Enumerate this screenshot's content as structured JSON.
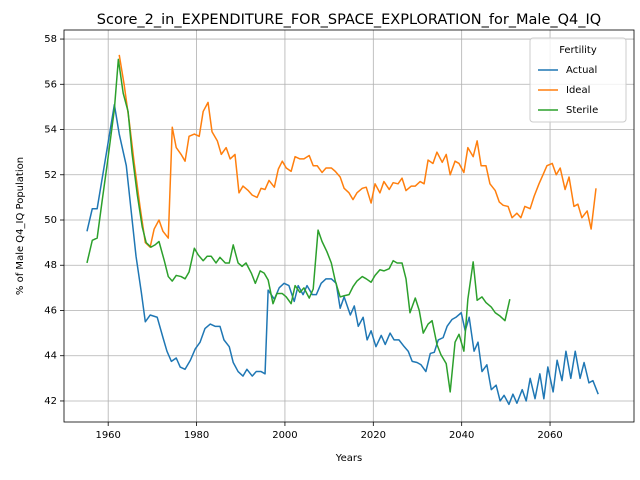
{
  "chart_data": {
    "type": "line",
    "title": "Score_2_in_EXPENDITURE_FOR_SPACE_EXPLORATION_for_Male_Q4_IQ",
    "xlabel": "Years",
    "ylabel": "% of Male Q4_IQ Population",
    "legend_title": "Fertility",
    "legend": "upper right",
    "grid": true,
    "xlim": [
      1950,
      2079
    ],
    "ylim": [
      41.07,
      58.4
    ],
    "xticks": [
      1960,
      1980,
      2000,
      2020,
      2040,
      2060
    ],
    "yticks": [
      42,
      44,
      46,
      48,
      50,
      52,
      54,
      56,
      58
    ],
    "series": [
      {
        "name": "Actual",
        "color": "#1f77b4",
        "x": [
          1955.2,
          1956.4,
          1957.5,
          1959.8,
          1961.4,
          1962.5,
          1964.1,
          1965.2,
          1966.3,
          1967.5,
          1968.4,
          1969.5,
          1971.1,
          1972.4,
          1973.3,
          1974.3,
          1975.4,
          1976.3,
          1977.4,
          1978.6,
          1979.7,
          1980.8,
          1981.9,
          1983.1,
          1984.2,
          1985.3,
          1986.2,
          1987.4,
          1988.3,
          1989.4,
          1990.5,
          1991.4,
          1992.6,
          1993.5,
          1994.6,
          1995.5,
          1996.2,
          1997.6,
          1998.7,
          1999.8,
          2000.9,
          2002.1,
          2003.0,
          2004.1,
          2005.0,
          2006.2,
          2007.1,
          2008.2,
          2009.3,
          2010.5,
          2011.6,
          2012.5,
          2013.4,
          2014.8,
          2015.7,
          2016.6,
          2017.7,
          2018.6,
          2019.5,
          2020.6,
          2021.8,
          2022.7,
          2023.8,
          2024.7,
          2025.8,
          2027.0,
          2027.9,
          2028.8,
          2029.9,
          2030.8,
          2031.9,
          2032.9,
          2033.8,
          2034.7,
          2035.8,
          2036.7,
          2037.8,
          2038.7,
          2039.9,
          2040.8,
          2041.7,
          2042.8,
          2043.7,
          2044.6,
          2045.7,
          2046.7,
          2047.8,
          2048.7,
          2049.6,
          2050.7,
          2051.6,
          2052.5,
          2053.7,
          2054.6,
          2055.5,
          2056.6,
          2057.7,
          2058.6,
          2059.5,
          2060.7,
          2061.6,
          2062.7,
          2063.6,
          2064.7,
          2065.7,
          2066.8,
          2067.7,
          2068.8,
          2069.7,
          2070.9
        ],
        "values": [
          49.5,
          50.5,
          50.5,
          53.2,
          55.1,
          53.8,
          52.4,
          50.4,
          48.4,
          46.8,
          45.5,
          45.8,
          45.7,
          44.8,
          44.2,
          43.75,
          43.9,
          43.5,
          43.4,
          43.8,
          44.3,
          44.6,
          45.2,
          45.4,
          45.3,
          45.3,
          44.7,
          44.4,
          43.7,
          43.3,
          43.1,
          43.4,
          43.1,
          43.3,
          43.3,
          43.2,
          46.9,
          46.5,
          47.0,
          47.2,
          47.1,
          46.4,
          47.1,
          46.7,
          47.1,
          46.7,
          46.7,
          47.2,
          47.4,
          47.4,
          47.2,
          46.1,
          46.6,
          45.8,
          46.2,
          45.3,
          45.7,
          44.7,
          45.1,
          44.4,
          44.9,
          44.5,
          45.0,
          44.7,
          44.7,
          44.4,
          44.2,
          43.75,
          43.7,
          43.6,
          43.3,
          44.1,
          44.15,
          44.7,
          44.8,
          45.3,
          45.6,
          45.7,
          45.9,
          45.1,
          45.7,
          44.2,
          44.6,
          43.3,
          43.6,
          42.5,
          42.7,
          42.0,
          42.25,
          41.85,
          42.3,
          41.9,
          42.5,
          42.0,
          43.0,
          42.1,
          43.2,
          42.1,
          43.5,
          42.4,
          43.8,
          42.9,
          44.2,
          43.0,
          44.2,
          43.0,
          43.7,
          42.8,
          42.9,
          42.3
        ]
      },
      {
        "name": "Ideal",
        "color": "#ff7f0e",
        "x": [
          1962.5,
          1963.6,
          1964.8,
          1965.9,
          1967.2,
          1968.4,
          1969.5,
          1970.4,
          1971.5,
          1972.4,
          1973.6,
          1974.5,
          1975.4,
          1976.5,
          1977.4,
          1978.3,
          1979.5,
          1980.6,
          1981.5,
          1982.6,
          1983.5,
          1984.7,
          1985.6,
          1986.7,
          1987.6,
          1988.7,
          1989.6,
          1990.5,
          1991.7,
          1992.6,
          1993.7,
          1994.6,
          1995.5,
          1996.4,
          1997.6,
          1998.5,
          1999.4,
          2000.3,
          2001.4,
          2002.3,
          2003.4,
          2004.3,
          2005.5,
          2006.4,
          2007.3,
          2008.4,
          2009.3,
          2010.5,
          2011.4,
          2012.5,
          2013.4,
          2014.5,
          2015.4,
          2016.3,
          2017.5,
          2018.4,
          2019.5,
          2020.4,
          2021.5,
          2022.4,
          2023.6,
          2024.5,
          2025.6,
          2026.5,
          2027.4,
          2028.6,
          2029.5,
          2030.6,
          2031.5,
          2032.4,
          2033.5,
          2034.4,
          2035.6,
          2036.5,
          2037.4,
          2038.5,
          2039.4,
          2040.5,
          2041.4,
          2042.6,
          2043.5,
          2044.4,
          2045.5,
          2046.4,
          2047.6,
          2048.5,
          2049.4,
          2050.5,
          2051.4,
          2052.5,
          2053.4,
          2054.3,
          2055.5,
          2056.4,
          2057.5,
          2058.4,
          2059.3,
          2060.5,
          2061.4,
          2062.3,
          2063.4,
          2064.3,
          2065.4,
          2066.3,
          2067.2,
          2068.4,
          2069.3,
          2070.4
        ],
        "values": [
          57.3,
          56.0,
          54.3,
          52.5,
          50.6,
          49.0,
          48.8,
          49.6,
          50.0,
          49.5,
          49.2,
          54.1,
          53.2,
          52.9,
          52.6,
          53.7,
          53.8,
          53.7,
          54.8,
          55.2,
          53.9,
          53.5,
          52.9,
          53.2,
          52.7,
          52.9,
          51.2,
          51.5,
          51.3,
          51.1,
          51.0,
          51.4,
          51.35,
          51.75,
          51.45,
          52.25,
          52.6,
          52.3,
          52.15,
          52.8,
          52.7,
          52.7,
          52.85,
          52.4,
          52.4,
          52.1,
          52.3,
          52.3,
          52.15,
          51.9,
          51.4,
          51.2,
          50.9,
          51.2,
          51.4,
          51.45,
          50.75,
          51.6,
          51.2,
          51.7,
          51.35,
          51.65,
          51.6,
          51.85,
          51.3,
          51.5,
          51.5,
          51.7,
          51.6,
          52.65,
          52.5,
          53.0,
          52.55,
          52.9,
          52.0,
          52.6,
          52.5,
          52.1,
          53.2,
          52.8,
          53.5,
          52.4,
          52.4,
          51.6,
          51.3,
          50.8,
          50.65,
          50.6,
          50.1,
          50.3,
          50.1,
          50.6,
          50.5,
          51.05,
          51.6,
          52.0,
          52.4,
          52.5,
          52.0,
          52.3,
          51.35,
          51.9,
          50.6,
          50.7,
          50.1,
          50.4,
          49.6,
          51.4
        ]
      },
      {
        "name": "Sterile",
        "color": "#2ca02c",
        "x": [
          1955.2,
          1956.4,
          1957.5,
          1958.6,
          1959.8,
          1961.4,
          1962.3,
          1963.4,
          1964.5,
          1965.4,
          1966.6,
          1967.7,
          1968.6,
          1969.7,
          1970.6,
          1971.5,
          1972.7,
          1973.6,
          1974.5,
          1975.4,
          1976.5,
          1977.4,
          1978.3,
          1979.5,
          1980.4,
          1981.5,
          1982.4,
          1983.3,
          1984.4,
          1985.3,
          1986.5,
          1987.4,
          1988.3,
          1989.4,
          1990.3,
          1991.2,
          1992.4,
          1993.3,
          1994.4,
          1995.3,
          1996.2,
          1997.3,
          1998.2,
          1999.4,
          2000.3,
          2001.4,
          2002.3,
          2003.4,
          2004.3,
          2005.5,
          2006.4,
          2007.5,
          2008.4,
          2009.5,
          2010.5,
          2011.4,
          2012.5,
          2013.4,
          2014.5,
          2015.4,
          2016.3,
          2017.5,
          2018.4,
          2019.5,
          2020.4,
          2021.5,
          2022.4,
          2023.6,
          2024.5,
          2025.4,
          2026.5,
          2027.4,
          2028.3,
          2029.5,
          2030.4,
          2031.3,
          2032.4,
          2033.3,
          2034.4,
          2035.3,
          2036.5,
          2037.4,
          2038.5,
          2039.4,
          2040.5,
          2041.4,
          2042.6,
          2043.5,
          2044.6,
          2045.5,
          2046.7,
          2047.6,
          2048.7,
          2049.8,
          2050.9
        ],
        "values": [
          48.1,
          49.1,
          49.2,
          50.8,
          52.5,
          54.9,
          57.1,
          55.6,
          54.8,
          52.95,
          51.1,
          49.7,
          49.0,
          48.8,
          48.9,
          49.05,
          48.2,
          47.5,
          47.3,
          47.55,
          47.5,
          47.4,
          47.7,
          48.75,
          48.45,
          48.2,
          48.4,
          48.4,
          48.1,
          48.35,
          48.1,
          48.1,
          48.9,
          48.1,
          47.95,
          48.1,
          47.65,
          47.2,
          47.75,
          47.65,
          47.35,
          46.3,
          46.75,
          46.75,
          46.6,
          46.3,
          47.1,
          46.8,
          47.0,
          46.55,
          46.95,
          49.55,
          49.05,
          48.6,
          48.1,
          47.3,
          46.6,
          46.65,
          46.7,
          47.05,
          47.3,
          47.5,
          47.4,
          47.25,
          47.55,
          47.8,
          47.75,
          47.85,
          48.2,
          48.1,
          48.1,
          47.4,
          45.9,
          46.55,
          46.0,
          45.0,
          45.4,
          45.55,
          44.5,
          44.05,
          43.65,
          42.4,
          44.6,
          44.95,
          44.2,
          46.5,
          48.15,
          46.45,
          46.6,
          46.35,
          46.15,
          45.9,
          45.75,
          45.55,
          46.5
        ]
      }
    ]
  }
}
